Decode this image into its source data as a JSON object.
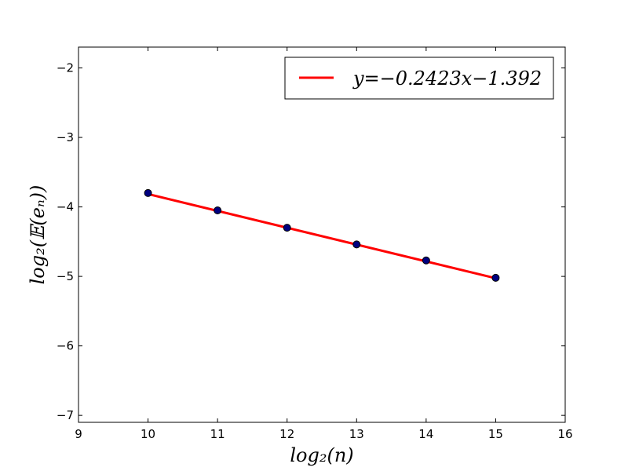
{
  "chart_data": {
    "type": "scatter",
    "xlabel": "log₂(n)",
    "ylabel": "log₂(𝔼(eₙ))",
    "xlim": [
      9,
      16
    ],
    "ylim": [
      -7.1,
      -1.7
    ],
    "x_ticks": [
      9,
      10,
      11,
      12,
      13,
      14,
      15,
      16
    ],
    "y_ticks": [
      -2,
      -3,
      -4,
      -5,
      -6,
      -7
    ],
    "x_tick_labels": [
      "9",
      "10",
      "11",
      "12",
      "13",
      "14",
      "15",
      "16"
    ],
    "y_tick_labels": [
      "−2",
      "−3",
      "−4",
      "−5",
      "−6",
      "−7"
    ],
    "grid": false,
    "legend_position": "top-right",
    "series": [
      {
        "kind": "scatter",
        "color": "#00007f",
        "edge_color": "#000000",
        "x": [
          10,
          11,
          12,
          13,
          14,
          15
        ],
        "y": [
          -3.8,
          -4.05,
          -4.3,
          -4.54,
          -4.77,
          -5.02
        ]
      },
      {
        "kind": "line",
        "name": "y=−0.2423x−1.392",
        "color": "#ff0000",
        "slope": -0.2423,
        "intercept": -1.392,
        "x_range": [
          10,
          15
        ]
      }
    ]
  }
}
